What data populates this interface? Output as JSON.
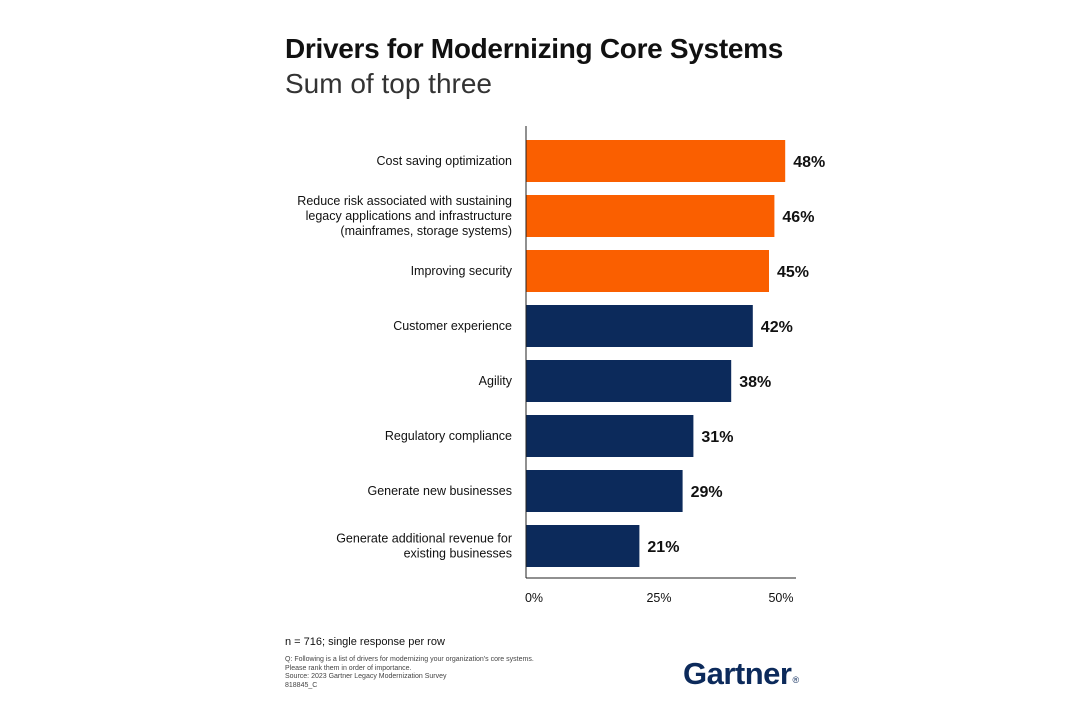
{
  "colors": {
    "highlight": "#fa5f00",
    "base": "#0c2a5b",
    "axis": "#222222"
  },
  "chart_data": {
    "type": "bar",
    "orientation": "horizontal",
    "title": "Drivers for Modernizing Core Systems",
    "subtitle": "Sum of top three",
    "categories": [
      [
        "Cost saving optimization"
      ],
      [
        "Reduce risk associated with sustaining",
        "legacy applications and infrastructure",
        "(mainframes, storage systems)"
      ],
      [
        "Improving security"
      ],
      [
        "Customer experience"
      ],
      [
        "Agility"
      ],
      [
        "Regulatory compliance"
      ],
      [
        "Generate new businesses"
      ],
      [
        "Generate additional revenue for",
        "existing businesses"
      ]
    ],
    "values": [
      48,
      46,
      45,
      42,
      38,
      31,
      29,
      21
    ],
    "value_labels": [
      "48%",
      "46%",
      "45%",
      "42%",
      "38%",
      "31%",
      "29%",
      "21%"
    ],
    "highlighted": [
      true,
      true,
      true,
      false,
      false,
      false,
      false,
      false
    ],
    "xlim": [
      0,
      50
    ],
    "ticks": [
      0,
      25,
      50
    ],
    "tick_labels": [
      "0%",
      "25%",
      "50%"
    ],
    "grid": false
  },
  "footer": {
    "note": "n = 716; single response per row",
    "fine_print": [
      "Q: Following is a list of drivers for modernizing your organization's core systems.",
      "Please rank them in order of importance.",
      "Source: 2023 Gartner Legacy Modernization Survey",
      "818845_C"
    ],
    "brand": "Gartner",
    "trademark": "®"
  }
}
